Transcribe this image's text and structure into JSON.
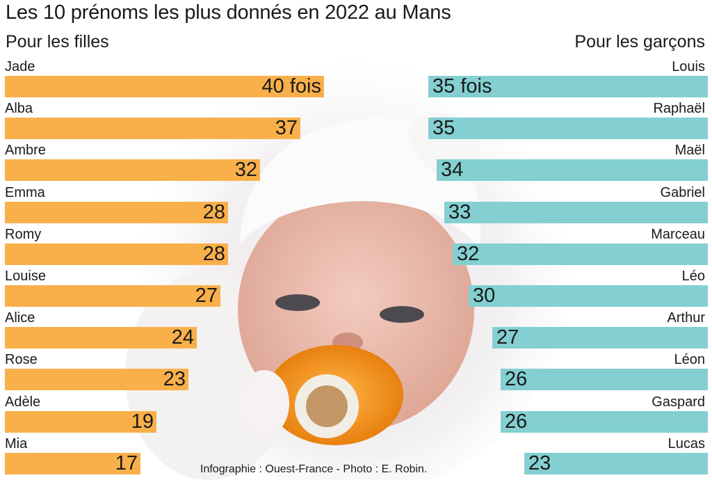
{
  "title": "Les 10 prénoms les plus donnés en 2022 au Mans",
  "credit": "Infographie : Ouest-France - Photo : E. Robin.",
  "colors": {
    "girls": "#f9b04a",
    "boys": "#83cfd1",
    "text": "#1a1a1a"
  },
  "chart_data": {
    "type": "bar",
    "title": "Les 10 prénoms les plus donnés en 2022 au Mans",
    "xlabel": "",
    "ylabel": "",
    "grid": false,
    "series": [
      {
        "name": "Pour les filles",
        "categories": [
          "Jade",
          "Alba",
          "Ambre",
          "Emma",
          "Romy",
          "Louise",
          "Alice",
          "Rose",
          "Adèle",
          "Mia"
        ],
        "values": [
          40,
          37,
          32,
          28,
          28,
          27,
          24,
          23,
          19,
          17
        ],
        "labels": [
          "40 fois",
          "37",
          "32",
          "28",
          "28",
          "27",
          "24",
          "23",
          "19",
          "17"
        ],
        "orientation": "horizontal, growing right",
        "color": "#f9b04a"
      },
      {
        "name": "Pour les garçons",
        "categories": [
          "Louis",
          "Raphaël",
          "Maël",
          "Gabriel",
          "Marceau",
          "Léo",
          "Arthur",
          "Léon",
          "Gaspard",
          "Lucas"
        ],
        "values": [
          35,
          35,
          34,
          33,
          32,
          30,
          27,
          26,
          26,
          23
        ],
        "labels": [
          "35 fois",
          "35",
          "34",
          "33",
          "32",
          "30",
          "27",
          "26",
          "26",
          "23"
        ],
        "orientation": "horizontal, growing left",
        "color": "#83cfd1"
      }
    ]
  }
}
